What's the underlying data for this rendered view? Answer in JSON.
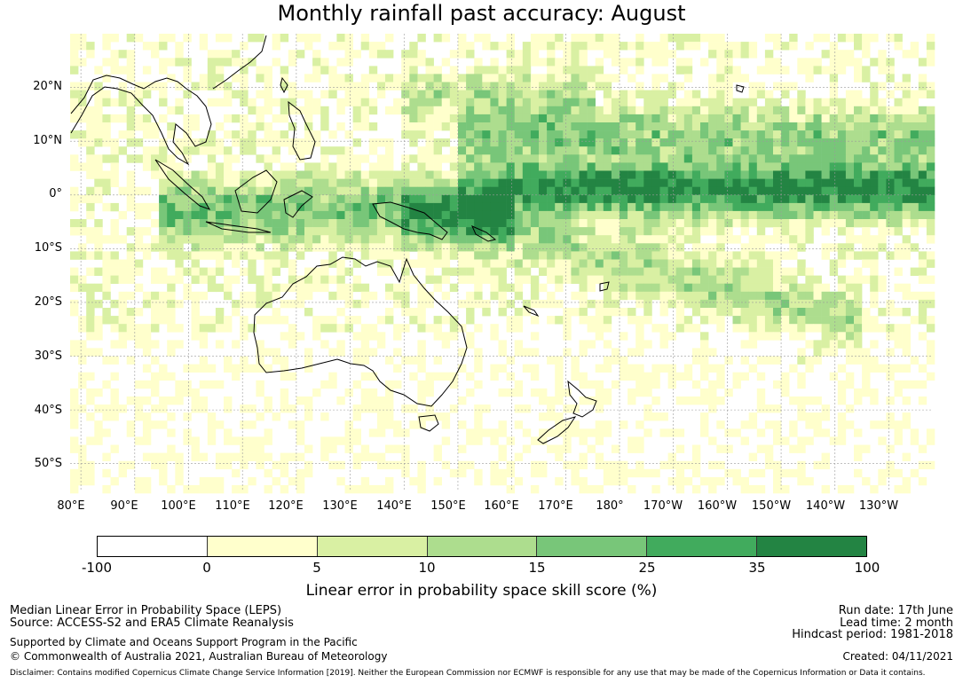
{
  "title": "Monthly rainfall past accuracy: August",
  "map": {
    "lat_labels": [
      "20°N",
      "10°N",
      "0°",
      "10°S",
      "20°S",
      "30°S",
      "40°S",
      "50°S"
    ],
    "lon_labels": [
      "80°E",
      "90°E",
      "100°E",
      "110°E",
      "120°E",
      "130°E",
      "140°E",
      "150°E",
      "160°E",
      "170°E",
      "180°",
      "170°W",
      "160°W",
      "150°W",
      "140°W",
      "130°W"
    ],
    "lat_values": [
      20,
      10,
      0,
      -10,
      -20,
      -30,
      -40,
      -50
    ],
    "lon_values": [
      80,
      90,
      100,
      110,
      120,
      130,
      140,
      150,
      160,
      170,
      180,
      190,
      200,
      210,
      220,
      230
    ],
    "lon_range": [
      78,
      238
    ],
    "lat_range": [
      -55,
      30
    ],
    "gridlines": true
  },
  "colorbar": {
    "ticks": [
      "-100",
      "0",
      "5",
      "10",
      "15",
      "25",
      "35",
      "100"
    ],
    "colors": [
      "#ffffff",
      "#ffffcc",
      "#d9f0a3",
      "#addd8e",
      "#78c679",
      "#41ab5d",
      "#238443"
    ],
    "label": "Linear error in probability space skill score (%)"
  },
  "footer": {
    "left_line1": "Median Linear Error in Probability Space (LEPS)",
    "left_line2": "Source: ACCESS-S2 and ERA5 Climate Reanalysis",
    "left_line3": "Supported by Climate and Oceans Support Program in the Pacific",
    "left_line4": "© Commonwealth of Australia 2021, Australian Bureau of Meteorology",
    "right_line1": "Run date: 17th June",
    "right_line2": "Lead time: 2 month",
    "right_line3": "Hindcast period: 1981-2018",
    "right_line4": "Created: 04/11/2021",
    "disclaimer": "Disclaimer: Contains modified Copernicus Climate Change Service Information [2019]. Neither the European Commission nor ECMWF is responsible for any use that may be made of the Copernicus Information or Data it contains."
  }
}
